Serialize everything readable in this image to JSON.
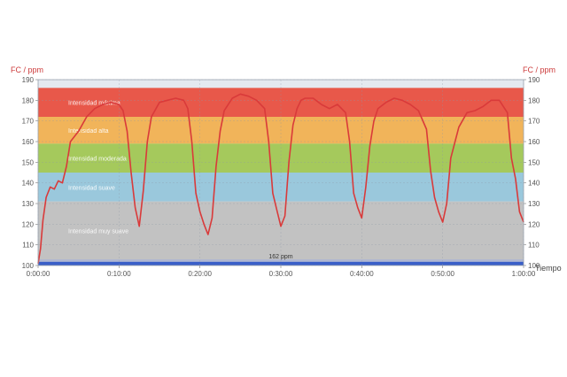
{
  "chart_data": {
    "type": "line",
    "ylabel_left": "FC / ppm",
    "ylabel_right": "FC / ppm",
    "xlabel": "Tiempo",
    "ylim": [
      100,
      190
    ],
    "yticks": [
      100,
      110,
      120,
      130,
      140,
      150,
      160,
      170,
      180,
      190
    ],
    "xlim_min": [
      0,
      60
    ],
    "xticks": [
      {
        "min": 0,
        "label": "0:00:00"
      },
      {
        "min": 10,
        "label": "0:10:00"
      },
      {
        "min": 20,
        "label": "0:20:00"
      },
      {
        "min": 30,
        "label": "0:30:00"
      },
      {
        "min": 40,
        "label": "0:40:00"
      },
      {
        "min": 50,
        "label": "0:50:00"
      },
      {
        "min": 60,
        "label": "1:00:00"
      }
    ],
    "zones": [
      {
        "name": "Intensidad máxima",
        "from": 172,
        "to": 186,
        "color": "#e8584a"
      },
      {
        "name": "Intensidad alta",
        "from": 159,
        "to": 172,
        "color": "#f1b45a"
      },
      {
        "name": "Intensidad moderada",
        "from": 145,
        "to": 159,
        "color": "#a5c95c"
      },
      {
        "name": "Intensidad suave",
        "from": 131,
        "to": 145,
        "color": "#9ac8dc"
      },
      {
        "name": "Intensidad muy suave",
        "from": 103,
        "to": 131,
        "color": "#c2c2c2"
      }
    ],
    "average_label": "162 ppm",
    "average_value": 162,
    "series": [
      {
        "color": "#d93a3a",
        "x": [
          0,
          0.3,
          0.6,
          1,
          1.5,
          2,
          2.5,
          3,
          3.5,
          4,
          5,
          6,
          7,
          8,
          9,
          10,
          10.5,
          11,
          11.5,
          12,
          12.5,
          13,
          13.5,
          14,
          15,
          16,
          17,
          18,
          18.5,
          19,
          19.5,
          20,
          20.5,
          21,
          21.5,
          22,
          22.5,
          23,
          24,
          25,
          26,
          27,
          28,
          28.5,
          29,
          29.5,
          30,
          30.5,
          31,
          31.5,
          32,
          32.5,
          33,
          34,
          35,
          36,
          37,
          38,
          38.5,
          39,
          39.5,
          40,
          40.5,
          41,
          41.5,
          42,
          43,
          44,
          45,
          46,
          47,
          48,
          48.5,
          49,
          49.5,
          50,
          50.5,
          51,
          52,
          53,
          54,
          55,
          56,
          57,
          58,
          58.5,
          59,
          59.5,
          60
        ],
        "y": [
          101,
          108,
          122,
          133,
          138,
          137,
          141,
          140,
          148,
          160,
          165,
          172,
          176,
          178,
          179,
          178,
          175,
          165,
          145,
          128,
          119,
          136,
          160,
          172,
          179,
          180,
          181,
          180,
          176,
          160,
          135,
          126,
          120,
          115,
          123,
          148,
          165,
          175,
          181,
          183,
          182,
          180,
          176,
          160,
          135,
          127,
          119,
          124,
          150,
          168,
          176,
          180,
          181,
          181,
          178,
          176,
          178,
          174,
          160,
          135,
          128,
          123,
          138,
          158,
          170,
          176,
          179,
          181,
          180,
          178,
          175,
          166,
          146,
          133,
          126,
          121,
          130,
          152,
          167,
          174,
          175,
          177,
          180,
          180,
          174,
          152,
          142,
          126,
          121
        ]
      }
    ]
  }
}
